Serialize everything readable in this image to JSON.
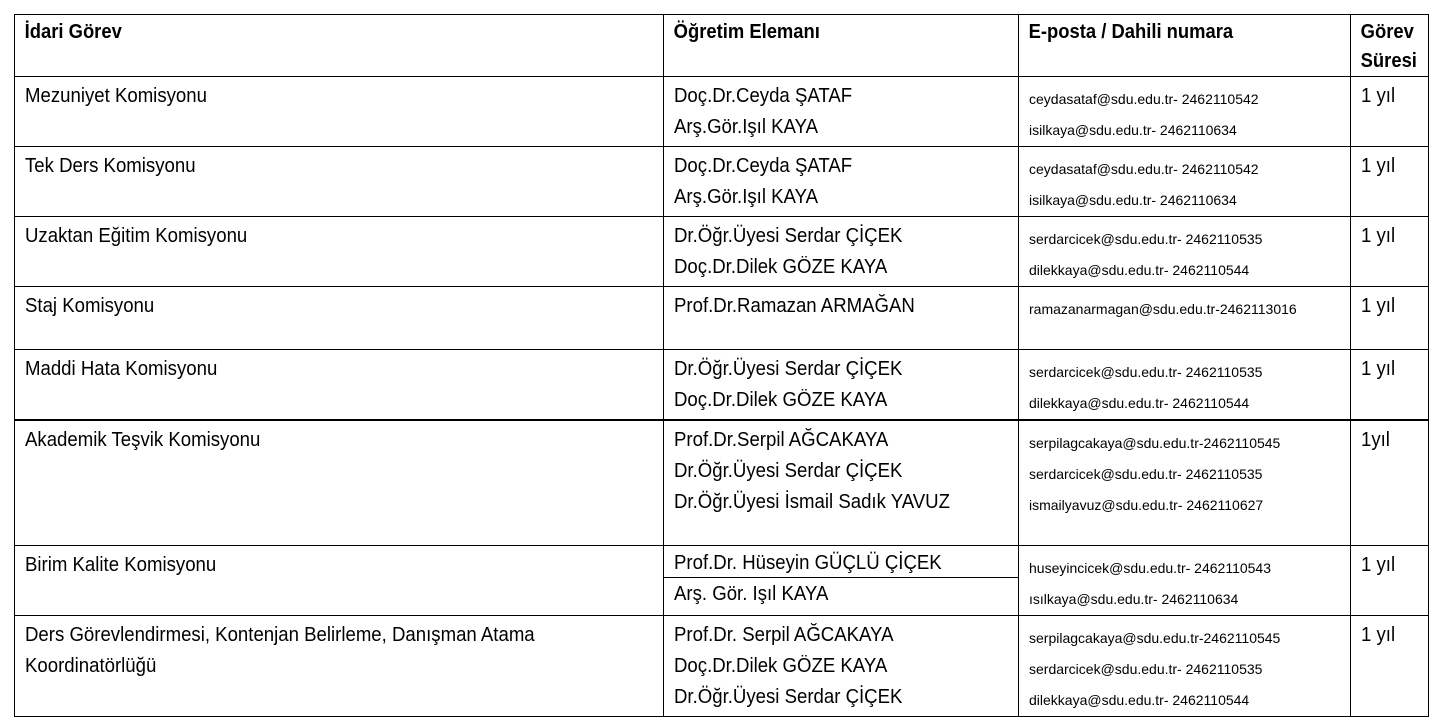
{
  "header": {
    "col1": "İdari Görev",
    "col2": "Öğretim Elemanı",
    "col3": "E-posta / Dahili numara",
    "col4_line1": "Görev",
    "col4_line2": "Süresi"
  },
  "rows": [
    {
      "duty": [
        "Mezuniyet Komisyonu"
      ],
      "members": [
        "Doç.Dr.Ceyda ŞATAF",
        "Arş.Gör.Işıl KAYA"
      ],
      "contacts": [
        "ceydasataf@sdu.edu.tr- 2462110542",
        "isilkaya@sdu.edu.tr- 2462110634"
      ],
      "term": "1 yıl"
    },
    {
      "duty": [
        "Tek Ders Komisyonu"
      ],
      "members": [
        "Doç.Dr.Ceyda ŞATAF",
        "Arş.Gör.Işıl KAYA"
      ],
      "contacts": [
        "ceydasataf@sdu.edu.tr- 2462110542",
        "isilkaya@sdu.edu.tr- 2462110634"
      ],
      "term": "1 yıl"
    },
    {
      "duty": [
        "Uzaktan Eğitim Komisyonu"
      ],
      "members": [
        "Dr.Öğr.Üyesi Serdar ÇİÇEK",
        "Doç.Dr.Dilek GÖZE KAYA"
      ],
      "contacts": [
        "serdarcicek@sdu.edu.tr- 2462110535",
        "dilekkaya@sdu.edu.tr- 2462110544"
      ],
      "term": "1 yıl"
    },
    {
      "duty": [
        "Staj Komisyonu"
      ],
      "members": [
        "Prof.Dr.Ramazan ARMAĞAN"
      ],
      "contacts": [
        "ramazanarmagan@sdu.edu.tr-2462113016"
      ],
      "term": "1 yıl"
    },
    {
      "duty": [
        "Maddi Hata Komisyonu"
      ],
      "members": [
        "Dr.Öğr.Üyesi Serdar ÇİÇEK",
        "Doç.Dr.Dilek GÖZE KAYA"
      ],
      "contacts": [
        "serdarcicek@sdu.edu.tr- 2462110535",
        "dilekkaya@sdu.edu.tr- 2462110544"
      ],
      "term": "1 yıl"
    },
    {
      "duty": [
        "Akademik Teşvik Komisyonu"
      ],
      "members": [
        "Prof.Dr.Serpil AĞCAKAYA",
        "Dr.Öğr.Üyesi Serdar ÇİÇEK",
        "Dr.Öğr.Üyesi İsmail Sadık YAVUZ"
      ],
      "contacts": [
        "serpilagcakaya@sdu.edu.tr-2462110545",
        "serdarcicek@sdu.edu.tr- 2462110535",
        "ismailyavuz@sdu.edu.tr- 2462110627"
      ],
      "term": "1yıl"
    },
    {
      "duty": [
        "Birim Kalite Komisyonu"
      ],
      "members": [
        "Prof.Dr. Hüseyin GÜÇLÜ ÇİÇEK",
        "Arş. Gör. Işıl KAYA"
      ],
      "contacts": [
        "huseyincicek@sdu.edu.tr- 2462110543",
        "ısılkaya@sdu.edu.tr- 2462110634"
      ],
      "term": "1 yıl"
    },
    {
      "duty": [
        "Ders Görevlendirmesi, Kontenjan Belirleme, Danışman Atama",
        "Koordinatörlüğü"
      ],
      "members": [
        "Prof.Dr. Serpil AĞCAKAYA",
        "Doç.Dr.Dilek GÖZE KAYA",
        "Dr.Öğr.Üyesi Serdar ÇİÇEK"
      ],
      "contacts": [
        "serpilagcakaya@sdu.edu.tr-2462110545",
        "serdarcicek@sdu.edu.tr- 2462110535",
        "dilekkaya@sdu.edu.tr- 2462110544"
      ],
      "term": "1 yıl"
    }
  ]
}
